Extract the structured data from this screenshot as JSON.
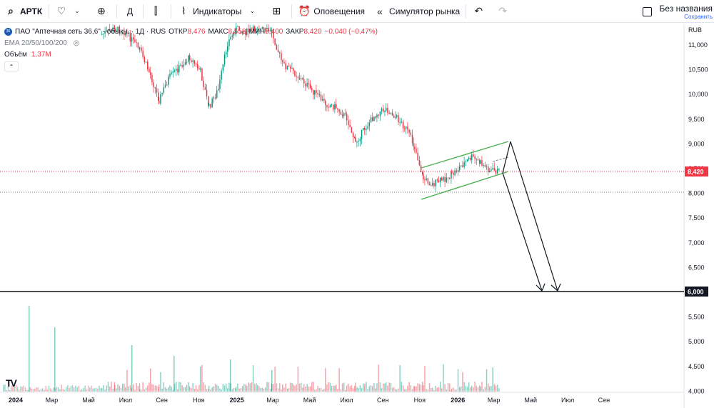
{
  "toolbar": {
    "symbol": "АРТК",
    "interval": "Д",
    "indicators": "Индикаторы",
    "alerts": "Оповещения",
    "replay": "Симулятор рынка",
    "save_title": "Без названия",
    "save_sub": "Сохранить"
  },
  "legend": {
    "title": "ПАО \"Аптечная сеть 36,6\" - обыкн. · 1Д · RUS",
    "open_label": "ОТКР",
    "open": "8,476",
    "high_label": "МАКС",
    "high": "8,558",
    "low_label": "МИН",
    "low": "8,400",
    "close_label": "ЗАКР",
    "close": "8,420",
    "change": "−0,040 (−0,47%)",
    "ema": "EMA 20/50/100/200",
    "volume_label": "Объём",
    "volume": "1,37M"
  },
  "price_axis": {
    "currency": "RUB",
    "ticks": [
      "11,000",
      "10,500",
      "10,000",
      "9,500",
      "9,000",
      "8,500",
      "8,000",
      "7,500",
      "7,000",
      "6,500",
      "6,000",
      "5,500",
      "5,000",
      "4,500",
      "4,000"
    ],
    "current_price": "8,420",
    "level_price": "6,000"
  },
  "time_axis": {
    "ticks": [
      "2024",
      "Мар",
      "Май",
      "Июл",
      "Сен",
      "Ноя",
      "2025",
      "Мар",
      "Май",
      "Июл",
      "Сен",
      "Ноя",
      "2026",
      "Мар",
      "Май",
      "Июл",
      "Сен"
    ]
  },
  "colors": {
    "up": "#089981",
    "down": "#f23645",
    "channel": "#4caf50",
    "accent": "#2962ff"
  },
  "branding": "TV"
}
